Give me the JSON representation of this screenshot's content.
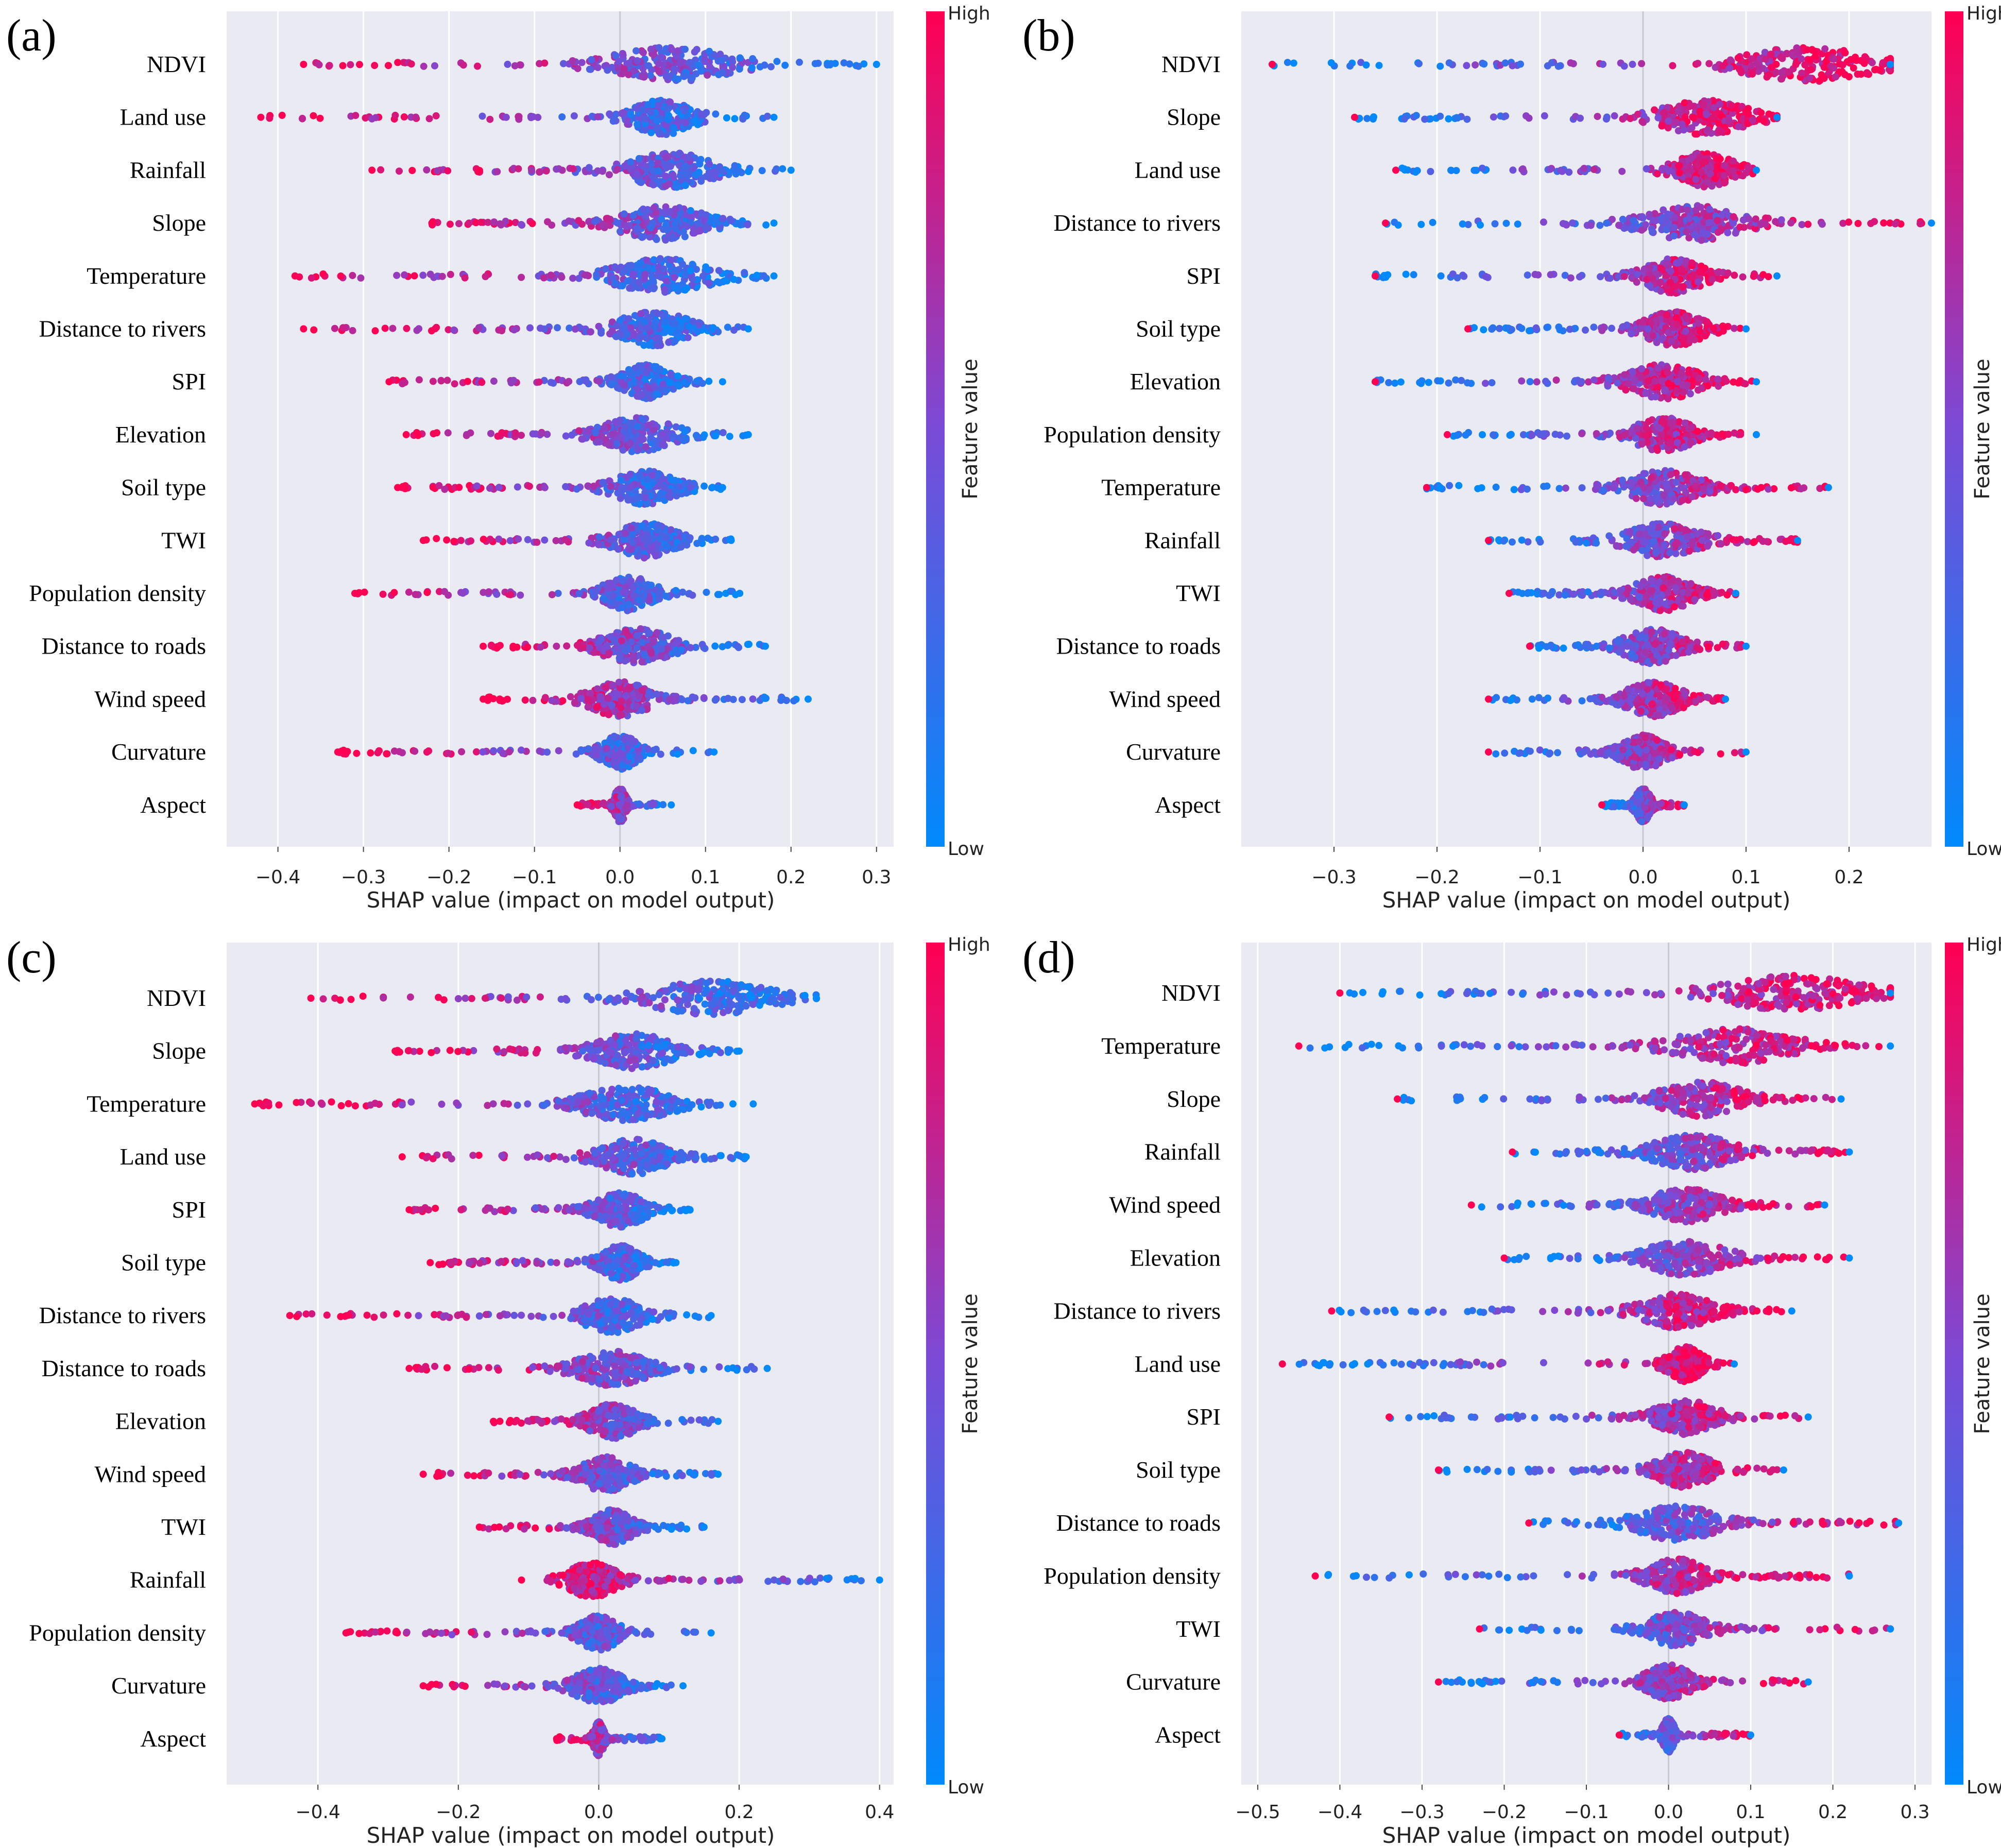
{
  "colors": {
    "low": "#008afb",
    "mid": "#7a4bd6",
    "high": "#ff0052",
    "plot_bg": "#e9eaf2",
    "grid": "#ffffff"
  },
  "colorbar": {
    "high_label": "High",
    "low_label": "Low",
    "title": "Feature value"
  },
  "chart_data": [
    {
      "type": "scatter",
      "panel": "(a)",
      "xlabel": "SHAP value (impact on model output)",
      "xlim": [
        -0.46,
        0.32
      ],
      "xticks": [
        -0.4,
        -0.3,
        -0.2,
        -0.1,
        0.0,
        0.1,
        0.2,
        0.3
      ],
      "xtick_labels": [
        "−0.4",
        "−0.3",
        "−0.2",
        "−0.1",
        "0.0",
        "0.1",
        "0.2",
        "0.3"
      ],
      "features": [
        {
          "name": "NDVI",
          "min": -0.37,
          "max": 0.3,
          "center": 0.06,
          "spread": 0.1
        },
        {
          "name": "Land use",
          "min": -0.42,
          "max": 0.18,
          "center": 0.05,
          "spread": 0.05
        },
        {
          "name": "Rainfall",
          "min": -0.29,
          "max": 0.2,
          "center": 0.06,
          "spread": 0.07
        },
        {
          "name": "Slope",
          "min": -0.22,
          "max": 0.18,
          "center": 0.05,
          "spread": 0.07
        },
        {
          "name": "Temperature",
          "min": -0.38,
          "max": 0.18,
          "center": 0.05,
          "spread": 0.08
        },
        {
          "name": "Distance to rivers",
          "min": -0.37,
          "max": 0.15,
          "center": 0.04,
          "spread": 0.06
        },
        {
          "name": "SPI",
          "min": -0.27,
          "max": 0.12,
          "center": 0.03,
          "spread": 0.04
        },
        {
          "name": "Elevation",
          "min": -0.25,
          "max": 0.15,
          "center": 0.02,
          "spread": 0.06
        },
        {
          "name": "Soil type",
          "min": -0.26,
          "max": 0.12,
          "center": 0.03,
          "spread": 0.05
        },
        {
          "name": "TWI",
          "min": -0.23,
          "max": 0.13,
          "center": 0.03,
          "spread": 0.05
        },
        {
          "name": "Population density",
          "min": -0.31,
          "max": 0.14,
          "center": 0.01,
          "spread": 0.04
        },
        {
          "name": "Distance to roads",
          "min": -0.16,
          "max": 0.17,
          "center": 0.02,
          "spread": 0.06
        },
        {
          "name": "Wind speed",
          "min": -0.16,
          "max": 0.22,
          "center": 0.0,
          "spread": 0.05
        },
        {
          "name": "Curvature",
          "min": -0.33,
          "max": 0.11,
          "center": 0.0,
          "spread": 0.03
        },
        {
          "name": "Aspect",
          "min": -0.05,
          "max": 0.06,
          "center": 0.0,
          "spread": 0.01
        }
      ]
    },
    {
      "type": "scatter",
      "panel": "(b)",
      "xlabel": "SHAP value (impact on model output)",
      "xlim": [
        -0.39,
        0.28
      ],
      "xticks": [
        -0.3,
        -0.2,
        -0.1,
        0.0,
        0.1,
        0.2
      ],
      "xtick_labels": [
        "−0.3",
        "−0.2",
        "−0.1",
        "0.0",
        "0.1",
        "0.2"
      ],
      "features": [
        {
          "name": "NDVI",
          "min": -0.36,
          "max": 0.24,
          "center": 0.16,
          "spread": 0.09
        },
        {
          "name": "Slope",
          "min": -0.28,
          "max": 0.13,
          "center": 0.06,
          "spread": 0.06
        },
        {
          "name": "Land use",
          "min": -0.24,
          "max": 0.11,
          "center": 0.06,
          "spread": 0.04
        },
        {
          "name": "Distance to rivers",
          "min": -0.25,
          "max": 0.28,
          "center": 0.05,
          "spread": 0.07
        },
        {
          "name": "SPI",
          "min": -0.26,
          "max": 0.13,
          "center": 0.03,
          "spread": 0.04
        },
        {
          "name": "Soil type",
          "min": -0.17,
          "max": 0.1,
          "center": 0.03,
          "spread": 0.04
        },
        {
          "name": "Elevation",
          "min": -0.26,
          "max": 0.11,
          "center": 0.02,
          "spread": 0.05
        },
        {
          "name": "Population density",
          "min": -0.19,
          "max": 0.11,
          "center": 0.02,
          "spread": 0.04
        },
        {
          "name": "Temperature",
          "min": -0.21,
          "max": 0.18,
          "center": 0.02,
          "spread": 0.05
        },
        {
          "name": "Rainfall",
          "min": -0.15,
          "max": 0.15,
          "center": 0.02,
          "spread": 0.05
        },
        {
          "name": "TWI",
          "min": -0.13,
          "max": 0.09,
          "center": 0.02,
          "spread": 0.04
        },
        {
          "name": "Distance to roads",
          "min": -0.11,
          "max": 0.1,
          "center": 0.01,
          "spread": 0.04
        },
        {
          "name": "Wind speed",
          "min": -0.15,
          "max": 0.08,
          "center": 0.01,
          "spread": 0.04
        },
        {
          "name": "Curvature",
          "min": -0.15,
          "max": 0.1,
          "center": 0.0,
          "spread": 0.03
        },
        {
          "name": "Aspect",
          "min": -0.04,
          "max": 0.04,
          "center": 0.0,
          "spread": 0.01
        }
      ]
    },
    {
      "type": "scatter",
      "panel": "(c)",
      "xlabel": "SHAP value (impact on model output)",
      "xlim": [
        -0.53,
        0.42
      ],
      "xticks": [
        -0.4,
        -0.2,
        0.0,
        0.2,
        0.4
      ],
      "xtick_labels": [
        "−0.4",
        "−0.2",
        "0.0",
        "0.2",
        "0.4"
      ],
      "features": [
        {
          "name": "NDVI",
          "min": -0.41,
          "max": 0.31,
          "center": 0.16,
          "spread": 0.12
        },
        {
          "name": "Slope",
          "min": -0.29,
          "max": 0.2,
          "center": 0.05,
          "spread": 0.08
        },
        {
          "name": "Temperature",
          "min": -0.49,
          "max": 0.22,
          "center": 0.04,
          "spread": 0.09
        },
        {
          "name": "Land use",
          "min": -0.28,
          "max": 0.21,
          "center": 0.05,
          "spread": 0.07
        },
        {
          "name": "SPI",
          "min": -0.27,
          "max": 0.13,
          "center": 0.03,
          "spread": 0.05
        },
        {
          "name": "Soil type",
          "min": -0.24,
          "max": 0.11,
          "center": 0.03,
          "spread": 0.04
        },
        {
          "name": "Distance to rivers",
          "min": -0.44,
          "max": 0.16,
          "center": 0.02,
          "spread": 0.06
        },
        {
          "name": "Distance to roads",
          "min": -0.27,
          "max": 0.24,
          "center": 0.02,
          "spread": 0.07
        },
        {
          "name": "Elevation",
          "min": -0.15,
          "max": 0.17,
          "center": 0.02,
          "spread": 0.05
        },
        {
          "name": "Wind speed",
          "min": -0.25,
          "max": 0.17,
          "center": 0.01,
          "spread": 0.05
        },
        {
          "name": "TWI",
          "min": -0.17,
          "max": 0.15,
          "center": 0.02,
          "spread": 0.04
        },
        {
          "name": "Rainfall",
          "min": -0.11,
          "max": 0.4,
          "center": -0.01,
          "spread": 0.05
        },
        {
          "name": "Population density",
          "min": -0.36,
          "max": 0.16,
          "center": 0.0,
          "spread": 0.04
        },
        {
          "name": "Curvature",
          "min": -0.25,
          "max": 0.12,
          "center": 0.0,
          "spread": 0.05
        },
        {
          "name": "Aspect",
          "min": -0.06,
          "max": 0.09,
          "center": 0.0,
          "spread": 0.01
        }
      ]
    },
    {
      "type": "scatter",
      "panel": "(d)",
      "xlabel": "SHAP value (impact on model output)",
      "xlim": [
        -0.52,
        0.32
      ],
      "xticks": [
        -0.5,
        -0.4,
        -0.3,
        -0.2,
        -0.1,
        0.0,
        0.1,
        0.2,
        0.3
      ],
      "xtick_labels": [
        "−0.5",
        "−0.4",
        "−0.3",
        "−0.2",
        "−0.1",
        "0.0",
        "0.1",
        "0.2",
        "0.3"
      ],
      "features": [
        {
          "name": "NDVI",
          "min": -0.4,
          "max": 0.27,
          "center": 0.15,
          "spread": 0.12
        },
        {
          "name": "Temperature",
          "min": -0.45,
          "max": 0.27,
          "center": 0.08,
          "spread": 0.1
        },
        {
          "name": "Slope",
          "min": -0.33,
          "max": 0.21,
          "center": 0.04,
          "spread": 0.07
        },
        {
          "name": "Rainfall",
          "min": -0.19,
          "max": 0.22,
          "center": 0.03,
          "spread": 0.07
        },
        {
          "name": "Wind speed",
          "min": -0.24,
          "max": 0.19,
          "center": 0.02,
          "spread": 0.06
        },
        {
          "name": "Elevation",
          "min": -0.2,
          "max": 0.22,
          "center": 0.02,
          "spread": 0.07
        },
        {
          "name": "Distance to rivers",
          "min": -0.41,
          "max": 0.15,
          "center": 0.01,
          "spread": 0.06
        },
        {
          "name": "Land use",
          "min": -0.47,
          "max": 0.08,
          "center": 0.02,
          "spread": 0.03
        },
        {
          "name": "SPI",
          "min": -0.34,
          "max": 0.17,
          "center": 0.02,
          "spread": 0.05
        },
        {
          "name": "Soil type",
          "min": -0.28,
          "max": 0.14,
          "center": 0.02,
          "spread": 0.05
        },
        {
          "name": "Distance to roads",
          "min": -0.17,
          "max": 0.28,
          "center": 0.01,
          "spread": 0.07
        },
        {
          "name": "Population density",
          "min": -0.43,
          "max": 0.22,
          "center": 0.01,
          "spread": 0.05
        },
        {
          "name": "TWI",
          "min": -0.23,
          "max": 0.27,
          "center": 0.01,
          "spread": 0.05
        },
        {
          "name": "Curvature",
          "min": -0.28,
          "max": 0.17,
          "center": 0.0,
          "spread": 0.04
        },
        {
          "name": "Aspect",
          "min": -0.06,
          "max": 0.1,
          "center": 0.0,
          "spread": 0.01
        }
      ]
    }
  ]
}
